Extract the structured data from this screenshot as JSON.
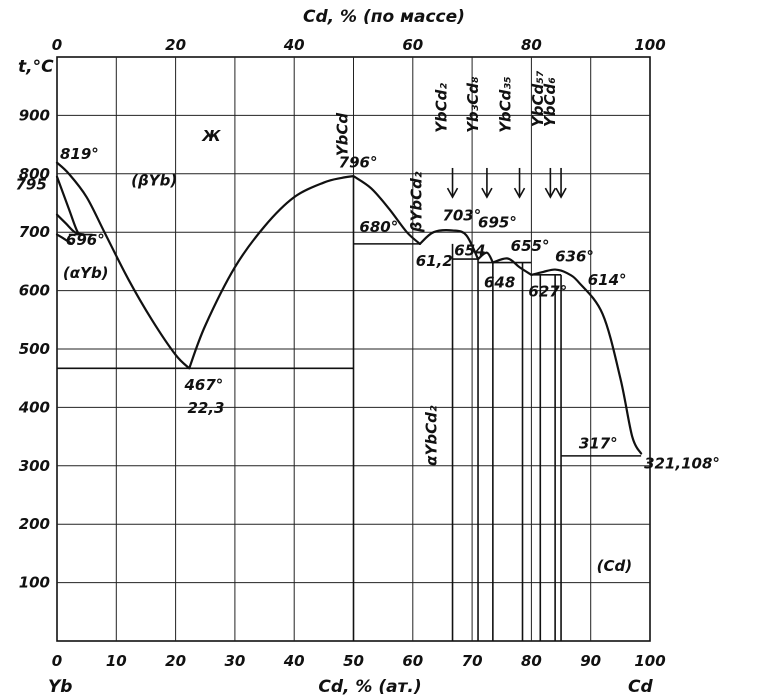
{
  "chart_data": {
    "type": "line",
    "title": "",
    "xlabel": "Cd, % (ат.)",
    "ylabel": "t,°C",
    "top_xlabel": "Cd, % (по массе)",
    "xlim": [
      0,
      100
    ],
    "ylim": [
      0,
      1000
    ],
    "grid": true,
    "x_ticks": [
      "0",
      "10",
      "20",
      "30",
      "40",
      "50",
      "60",
      "70",
      "80",
      "90",
      "100"
    ],
    "y_ticks": [
      "100",
      "200",
      "300",
      "400",
      "500",
      "600",
      "700",
      "800",
      "900"
    ],
    "top_ticks": [
      "0",
      "20",
      "40",
      "60",
      "80",
      "100"
    ],
    "corner_labels": {
      "left": "Yb",
      "right": "Cd"
    },
    "series": [
      {
        "x": [
          0,
          2,
          5,
          8,
          12,
          16,
          20,
          22.3
        ],
        "y": [
          819,
          800,
          760,
          700,
          620,
          550,
          490,
          467
        ]
      },
      {
        "x": [
          22.3,
          25,
          30,
          35,
          40,
          45,
          48,
          50
        ],
        "y": [
          467,
          540,
          640,
          710,
          760,
          785,
          793,
          796
        ]
      },
      {
        "x": [
          50,
          53,
          56,
          59,
          61.2
        ],
        "y": [
          796,
          775,
          740,
          700,
          680
        ]
      },
      {
        "x": [
          61.2,
          63.5,
          66.7,
          69,
          71
        ],
        "y": [
          680,
          700,
          703,
          695,
          654
        ]
      },
      {
        "x": [
          71,
          72.5,
          73.5
        ],
        "y": [
          654,
          665,
          648
        ]
      },
      {
        "x": [
          73.5,
          76,
          78,
          80
        ],
        "y": [
          648,
          655,
          640,
          627
        ]
      },
      {
        "x": [
          80,
          82,
          84,
          86,
          88,
          92,
          95,
          97,
          98.5
        ],
        "y": [
          627,
          632,
          636,
          630,
          614,
          560,
          450,
          350,
          321
        ]
      },
      {
        "x": [
          0,
          2,
          3.5,
          4.5
        ],
        "y": [
          795,
          740,
          700,
          696
        ]
      },
      {
        "x": [
          0,
          1.5,
          3,
          4.5
        ],
        "y": [
          730,
          715,
          700,
          696
        ]
      },
      {
        "x": [
          0,
          1,
          2.5
        ],
        "y": [
          696,
          690,
          680
        ]
      }
    ],
    "horizontals": [
      {
        "x": [
          0,
          50
        ],
        "y": 467
      },
      {
        "x": [
          50,
          61.2
        ],
        "y": 680
      },
      {
        "x": [
          66.7,
          71
        ],
        "y": 654
      },
      {
        "x": [
          71,
          80
        ],
        "y": 648
      },
      {
        "x": [
          80,
          85
        ],
        "y": 627
      },
      {
        "x": [
          85,
          98.5
        ],
        "y": 317
      },
      {
        "x": [
          2,
          6
        ],
        "y": 696
      }
    ],
    "verticals": [
      {
        "x": 50,
        "y": [
          0,
          796
        ]
      },
      {
        "x": 66.7,
        "y": [
          0,
          680
        ]
      },
      {
        "x": 71,
        "y": [
          0,
          654
        ]
      },
      {
        "x": 73.5,
        "y": [
          0,
          648
        ]
      },
      {
        "x": 78.5,
        "y": [
          0,
          648
        ]
      },
      {
        "x": 81.5,
        "y": [
          0,
          627
        ]
      },
      {
        "x": 84,
        "y": [
          0,
          627
        ]
      },
      {
        "x": 85,
        "y": [
          0,
          627
        ]
      }
    ],
    "annotations": [
      {
        "text": "819°",
        "x": 0.5,
        "y": 825
      },
      {
        "text": "795",
        "x": -7,
        "y": 773
      },
      {
        "text": "(βYb)",
        "x": 12.5,
        "y": 780
      },
      {
        "text": "696°",
        "x": 1.5,
        "y": 678
      },
      {
        "text": "(αYb)",
        "x": 1,
        "y": 622
      },
      {
        "text": "Ж",
        "x": 24.5,
        "y": 856
      },
      {
        "text": "796°",
        "x": 47.5,
        "y": 811
      },
      {
        "text": "680°",
        "x": 51,
        "y": 700
      },
      {
        "text": "61,2",
        "x": 60.5,
        "y": 642
      },
      {
        "text": "703°",
        "x": 65,
        "y": 720
      },
      {
        "text": "695°",
        "x": 71,
        "y": 708
      },
      {
        "text": "654",
        "x": 67,
        "y": 660
      },
      {
        "text": "648",
        "x": 72,
        "y": 605
      },
      {
        "text": "655°",
        "x": 76.5,
        "y": 668
      },
      {
        "text": "627°",
        "x": 79.5,
        "y": 590
      },
      {
        "text": "636°",
        "x": 84,
        "y": 650
      },
      {
        "text": "614°",
        "x": 89.5,
        "y": 610
      },
      {
        "text": "467°",
        "x": 21.5,
        "y": 430
      },
      {
        "text": "22,3",
        "x": 22,
        "y": 390
      },
      {
        "text": "317°",
        "x": 88,
        "y": 330
      },
      {
        "text": "321,108°",
        "x": 99,
        "y": 295
      },
      {
        "text": "(Cd)",
        "x": 91,
        "y": 120
      }
    ],
    "phases": [
      {
        "text": "YbCd",
        "x": 50,
        "y_from": 830
      },
      {
        "text": "βYbCd₂",
        "x": 62.5,
        "y_from": 700
      },
      {
        "text": "YbCd₂",
        "x": 66.7,
        "y_from": 870
      },
      {
        "text": "Yb₃Cd₈",
        "x": 72,
        "y_from": 870
      },
      {
        "text": "YbCd₃₅",
        "x": 77.5,
        "y_from": 870
      },
      {
        "text": "YbCd₅₇",
        "x": 83,
        "y_from": 880
      },
      {
        "text": "YbCd₆",
        "x": 85,
        "y_from": 880
      },
      {
        "text": "αYbCd₂",
        "x": 65,
        "y_from": 300
      }
    ],
    "arrows": [
      {
        "x": 66.7,
        "y": [
          810,
          760
        ]
      },
      {
        "x": 72.5,
        "y": [
          810,
          760
        ]
      },
      {
        "x": 78,
        "y": [
          810,
          760
        ]
      },
      {
        "x": 83.2,
        "y": [
          810,
          760
        ]
      },
      {
        "x": 85,
        "y": [
          810,
          760
        ]
      }
    ]
  }
}
